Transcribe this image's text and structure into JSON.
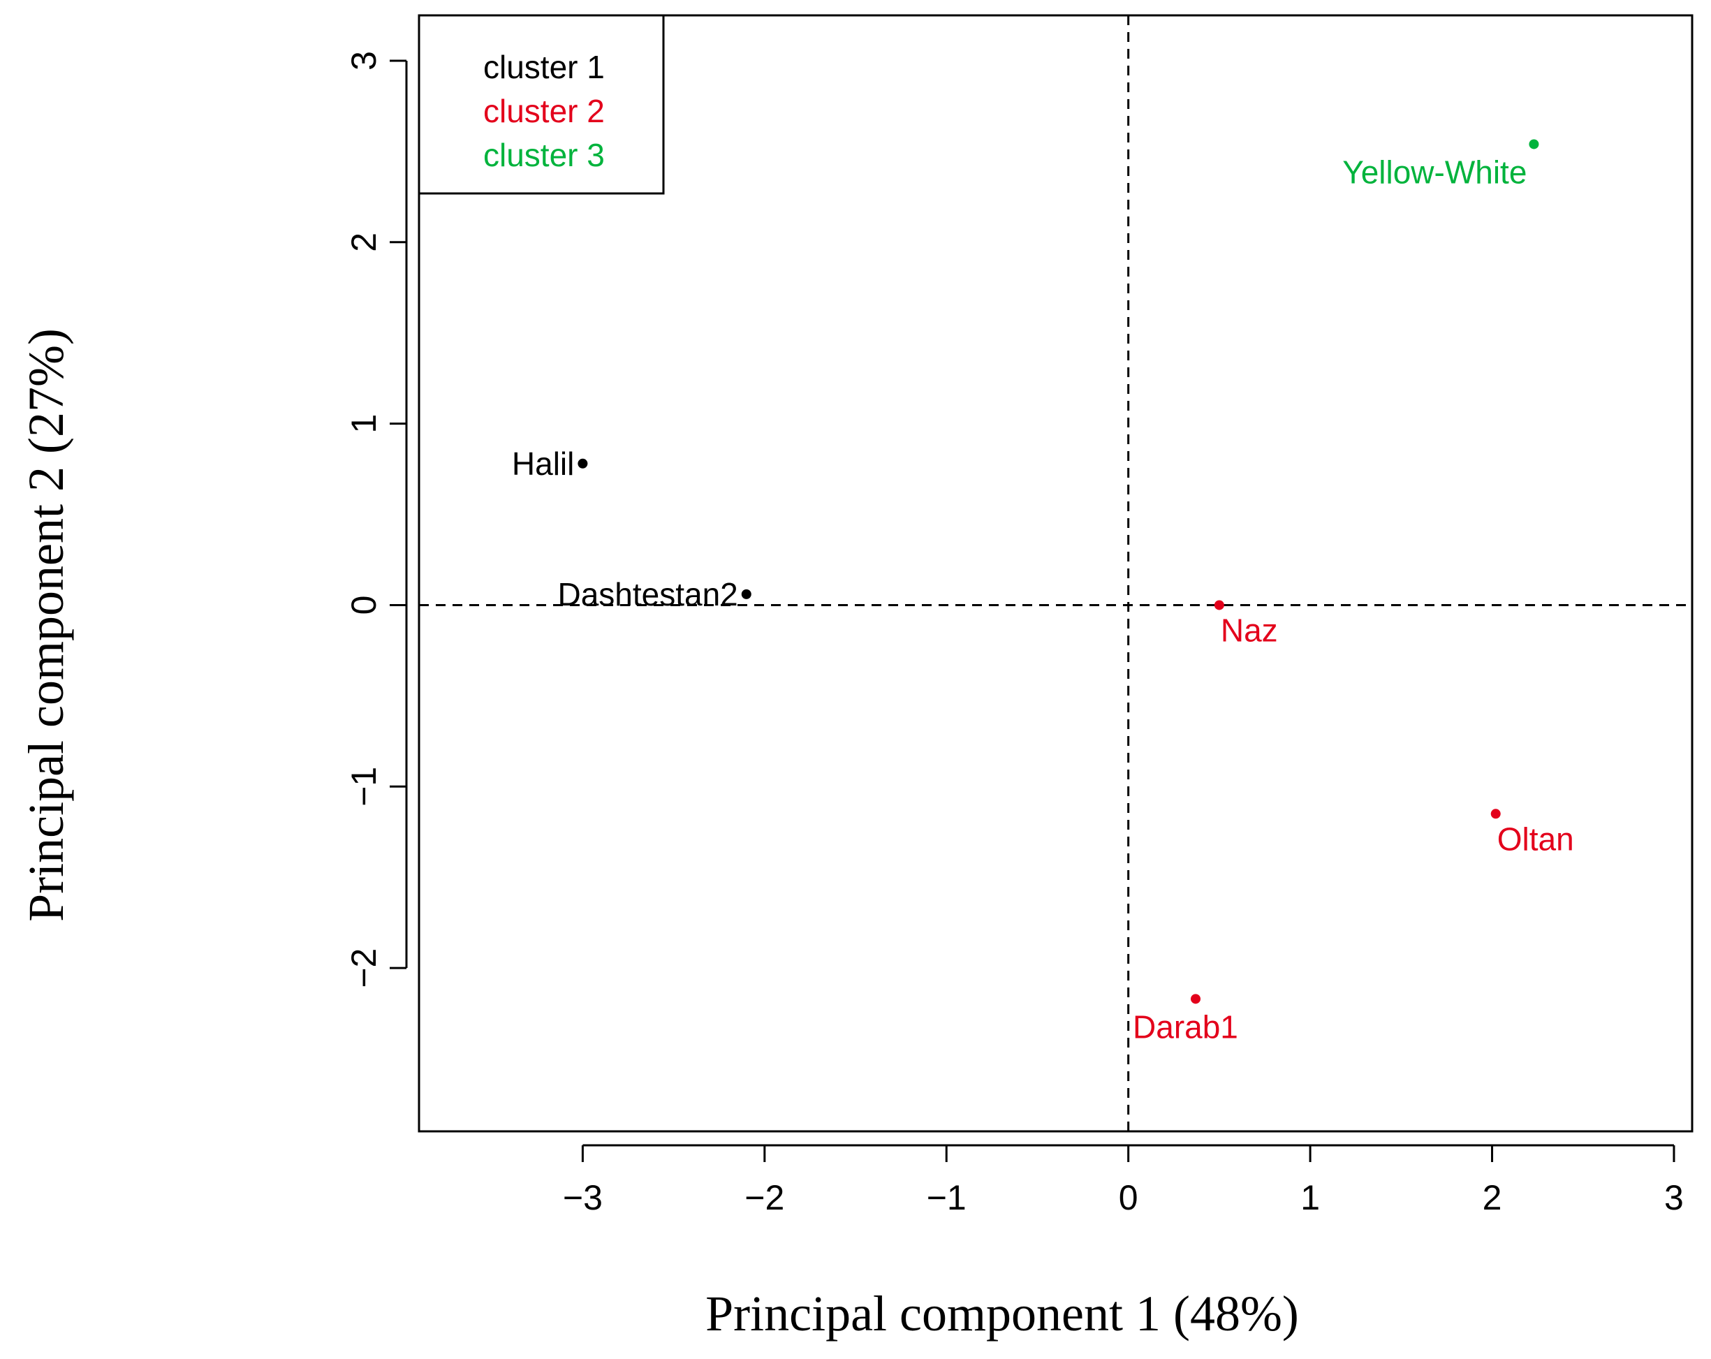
{
  "chart_data": {
    "type": "scatter",
    "xlabel": "Principal component 1 (48%)",
    "ylabel": "Principal component 2 (27%)",
    "xlim": [
      -3.9,
      3.1
    ],
    "ylim": [
      -2.9,
      3.25
    ],
    "x_ticks": [
      -3,
      -2,
      -1,
      0,
      1,
      2,
      3
    ],
    "y_ticks": [
      -2,
      -1,
      0,
      1,
      2,
      3
    ],
    "x_tick_labels": [
      "−3",
      "−2",
      "−1",
      "0",
      "1",
      "2",
      "3"
    ],
    "y_tick_labels": [
      "−2",
      "−1",
      "0",
      "1",
      "2",
      "3"
    ],
    "reference_lines": {
      "x": 0,
      "y": 0,
      "style": "dashed"
    },
    "legend": {
      "position": "top-left",
      "entries": [
        {
          "label": "cluster 1",
          "color": "#000000"
        },
        {
          "label": "cluster 2",
          "color": "#e3001b"
        },
        {
          "label": "cluster 3",
          "color": "#00b33c"
        }
      ]
    },
    "points": [
      {
        "label": "Halil",
        "x": -3.0,
        "y": 0.78,
        "cluster": 1,
        "color": "#000000",
        "label_side": "left"
      },
      {
        "label": "Dashtestan2",
        "x": -2.1,
        "y": 0.06,
        "cluster": 1,
        "color": "#000000",
        "label_side": "left"
      },
      {
        "label": "Naz",
        "x": 0.5,
        "y": 0.0,
        "cluster": 2,
        "color": "#e3001b",
        "label_side": "below-right"
      },
      {
        "label": "Oltan",
        "x": 2.02,
        "y": -1.15,
        "cluster": 2,
        "color": "#e3001b",
        "label_side": "below-right"
      },
      {
        "label": "Darab1",
        "x": 0.37,
        "y": -2.17,
        "cluster": 2,
        "color": "#e3001b",
        "label_side": "below"
      },
      {
        "label": "Yellow-White",
        "x": 2.23,
        "y": 2.54,
        "cluster": 3,
        "color": "#00b33c",
        "label_side": "below-left"
      }
    ]
  }
}
